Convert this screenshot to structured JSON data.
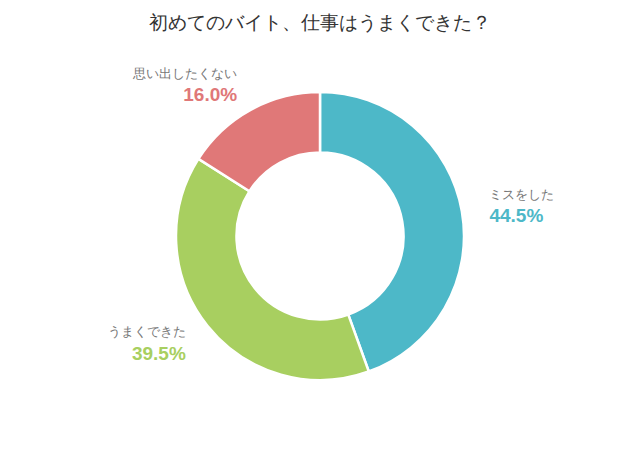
{
  "chart_data": {
    "type": "pie",
    "title": "初めてのバイト、仕事はうまくできた？",
    "categories": [
      "ミスをした",
      "うまくできた",
      "思い出したくない"
    ],
    "values": [
      44.5,
      39.5,
      16.0
    ],
    "value_labels": [
      "44.5%",
      "39.5%",
      "16.0%"
    ],
    "colors": [
      "#4DB8C8",
      "#A8CF60",
      "#E07878"
    ],
    "data_labels": true
  }
}
